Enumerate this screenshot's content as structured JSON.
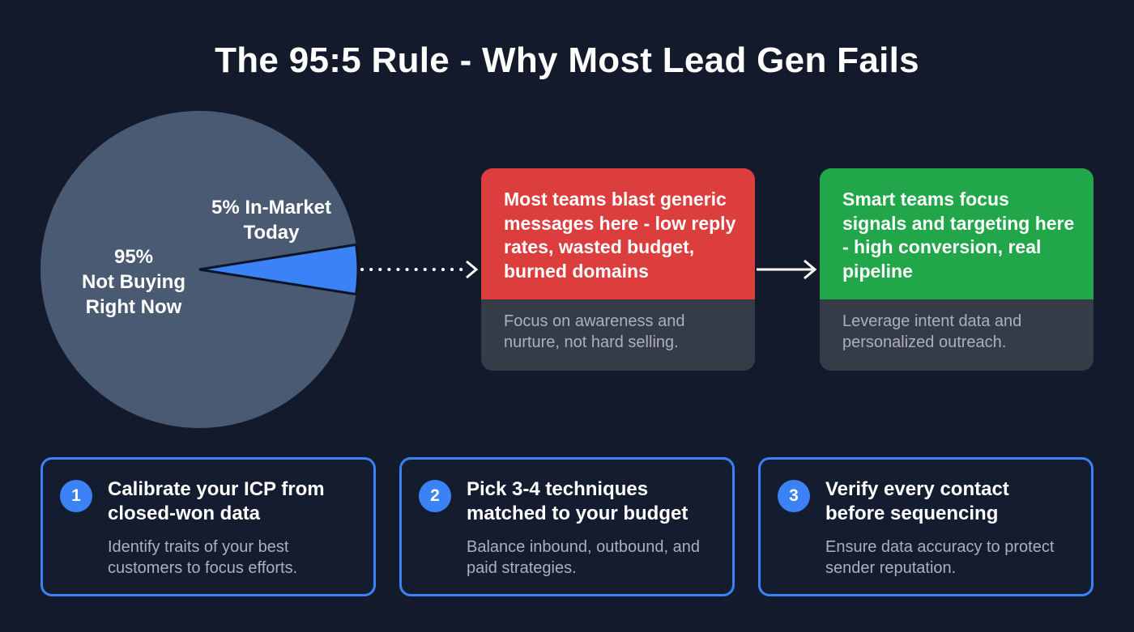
{
  "title": "The 95:5 Rule - Why Most Lead Gen Fails",
  "chart_data": {
    "type": "pie",
    "slices": [
      {
        "label": "95% Not Buying Right Now",
        "value": 95,
        "color": "#4a5a73"
      },
      {
        "label": "5% In-Market Today",
        "value": 5,
        "color": "#3b82f6"
      }
    ]
  },
  "pie": {
    "big_label_pct": "95%",
    "big_label_l1": "Not Buying",
    "big_label_l2": "Right Now",
    "small_label_l1": "5% In-Market",
    "small_label_l2": "Today"
  },
  "cards": [
    {
      "headline": "Most teams blast generic messages here - low reply rates, wasted budget, burned domains",
      "desc": "Focus on awareness and nurture, not hard selling.",
      "color": "#dc3d3d"
    },
    {
      "headline": "Smart teams focus signals and targeting here - high conversion, real pipeline",
      "desc": "Leverage intent data and personalized outreach.",
      "color": "#22a64a"
    }
  ],
  "steps": [
    {
      "num": "1",
      "title": "Calibrate your ICP from closed-won data",
      "desc": "Identify traits of your best customers to focus efforts."
    },
    {
      "num": "2",
      "title": "Pick 3-4 techniques matched to your budget",
      "desc": "Balance inbound, outbound, and paid strategies."
    },
    {
      "num": "3",
      "title": "Verify every contact before sequencing",
      "desc": "Ensure data accuracy to protect sender reputation."
    }
  ]
}
